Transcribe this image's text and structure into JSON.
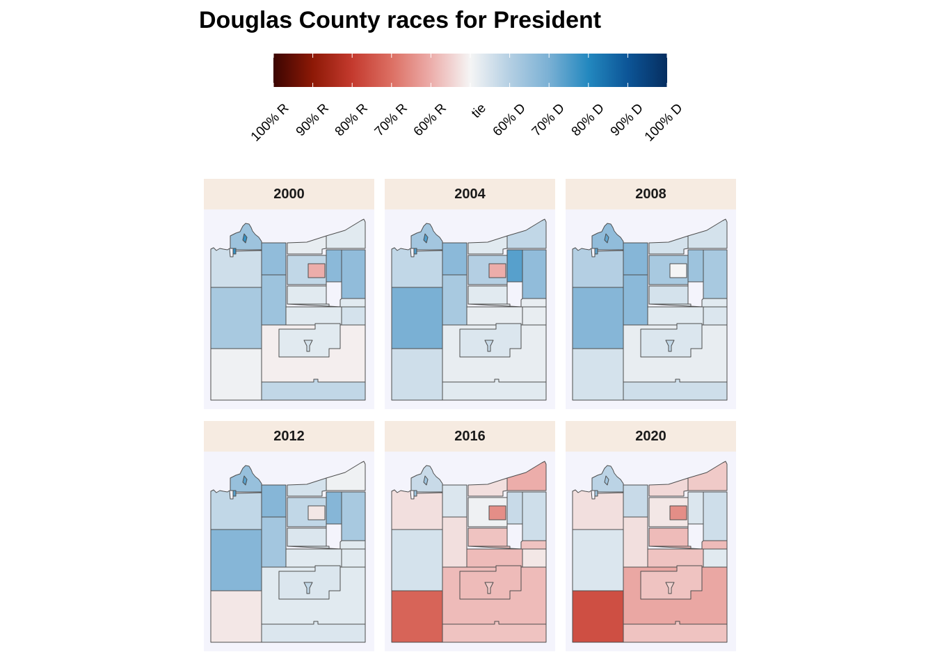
{
  "title": "Douglas County races for President",
  "legend": {
    "ticks": [
      "100% R",
      "90% R",
      "80% R",
      "70% R",
      "60% R",
      "tie",
      "60% D",
      "70% D",
      "80% D",
      "90% D",
      "100% D"
    ],
    "colors": {
      "r100": "#3b0502",
      "r90": "#8d1906",
      "r80": "#c43a2e",
      "r70": "#dc6f63",
      "r60": "#ecadaa",
      "tie": "#f5f5f5",
      "d60": "#b4cfe3",
      "d70": "#7ab0d4",
      "d80": "#2388bf",
      "d90": "#0c5597",
      "d100": "#062e60"
    }
  },
  "panels": [
    {
      "year": "2000",
      "regions": {
        "north_lake": 0.64,
        "north_spit": 0.78,
        "nw": 0.56,
        "n1": 0.66,
        "n2": 0.52,
        "ne1": 0.53,
        "ne2": 0.67,
        "ne3": 0.66,
        "urban_c": -0.6,
        "urban_ring": 0.58,
        "w_mid": 0.62,
        "c_mid": 0.64,
        "c1": 0.53,
        "c2": 0.53,
        "c3": 0.53,
        "e_mid": 0.55,
        "sw": 0.51,
        "s_center": -0.51,
        "sc_inner": 0.53,
        "sc_notch": 0.55,
        "s_south": 0.58
      }
    },
    {
      "year": "2004",
      "regions": {
        "north_lake": 0.63,
        "north_spit": 0.75,
        "nw": 0.58,
        "n1": 0.67,
        "n2": 0.53,
        "ne1": 0.58,
        "ne2": 0.74,
        "ne3": 0.66,
        "urban_c": -0.6,
        "urban_ring": 0.6,
        "w_mid": 0.7,
        "c_mid": 0.62,
        "c1": 0.53,
        "c2": 0.52,
        "c3": 0.52,
        "e_mid": 0.52,
        "sw": 0.56,
        "s_center": 0.52,
        "sc_inner": 0.54,
        "sc_notch": 0.57,
        "s_south": 0.53
      }
    },
    {
      "year": "2008",
      "regions": {
        "north_lake": 0.66,
        "north_spit": 0.73,
        "nw": 0.6,
        "n1": 0.68,
        "n2": 0.55,
        "ne1": 0.55,
        "ne2": 0.64,
        "ne3": 0.62,
        "urban_c": 0.5,
        "urban_ring": 0.62,
        "w_mid": 0.68,
        "c_mid": 0.67,
        "c1": 0.55,
        "c2": 0.53,
        "c3": 0.53,
        "e_mid": 0.54,
        "sw": 0.55,
        "s_center": 0.52,
        "sc_inner": 0.54,
        "sc_notch": 0.58,
        "s_south": 0.56
      }
    },
    {
      "year": "2012",
      "regions": {
        "north_lake": 0.65,
        "north_spit": 0.74,
        "nw": 0.58,
        "n1": 0.68,
        "n2": 0.55,
        "ne1": 0.51,
        "ne2": 0.68,
        "ne3": 0.62,
        "urban_c": -0.52,
        "urban_ring": 0.58,
        "w_mid": 0.68,
        "c_mid": 0.63,
        "c1": 0.54,
        "c2": 0.53,
        "c3": 0.53,
        "e_mid": 0.53,
        "sw": -0.52,
        "s_center": 0.53,
        "sc_inner": 0.54,
        "sc_notch": 0.58,
        "s_south": 0.54
      }
    },
    {
      "year": "2016",
      "regions": {
        "north_lake": 0.57,
        "north_spit": 0.64,
        "nw": -0.53,
        "n1": 0.54,
        "n2": -0.53,
        "ne1": -0.6,
        "ne2": 0.57,
        "ne3": 0.56,
        "urban_c": -0.65,
        "urban_ring": 0.51,
        "w_mid": 0.55,
        "c_mid": -0.53,
        "c1": -0.57,
        "c2": -0.57,
        "c3": -0.58,
        "e_mid": -0.52,
        "sw": -0.72,
        "s_center": -0.58,
        "sc_inner": -0.58,
        "sc_notch": -0.56,
        "s_south": -0.57
      }
    },
    {
      "year": "2020",
      "regions": {
        "north_lake": 0.59,
        "north_spit": 0.63,
        "nw": -0.53,
        "n1": 0.57,
        "n2": -0.54,
        "ne1": -0.56,
        "ne2": 0.54,
        "ne3": 0.56,
        "urban_c": -0.65,
        "urban_ring": -0.52,
        "w_mid": 0.54,
        "c_mid": -0.53,
        "c1": -0.58,
        "c2": -0.58,
        "c3": -0.57,
        "e_mid": 0.53,
        "sw": -0.76,
        "s_center": -0.61,
        "sc_inner": -0.57,
        "sc_notch": -0.55,
        "s_south": -0.57
      }
    }
  ]
}
